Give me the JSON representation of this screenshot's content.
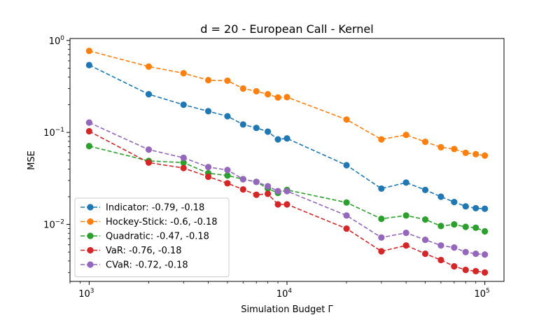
{
  "chart_data": {
    "type": "line",
    "title": "d = 20 - European Call - Kernel",
    "xlabel": "Simulation Budget Γ",
    "ylabel": "MSE",
    "xscale": "log",
    "yscale": "log",
    "xlim": [
      800,
      125000
    ],
    "ylim": [
      0.0024,
      1.05
    ],
    "x_ticks": [
      {
        "value": 1000,
        "base": "10",
        "exp": "3"
      },
      {
        "value": 10000,
        "base": "10",
        "exp": "4"
      },
      {
        "value": 100000,
        "base": "10",
        "exp": "5"
      }
    ],
    "y_ticks": [
      {
        "value": 0.01,
        "base": "10",
        "exp": "−2"
      },
      {
        "value": 0.1,
        "base": "10",
        "exp": "−1"
      },
      {
        "value": 1,
        "base": "10",
        "exp": "0"
      }
    ],
    "grid": false,
    "legend_position": "lower-left",
    "x": [
      1000,
      2000,
      3000,
      4000,
      5000,
      6000,
      7000,
      8000,
      9000,
      10000,
      20000,
      30000,
      40000,
      50000,
      60000,
      70000,
      80000,
      90000,
      100000
    ],
    "series": [
      {
        "name": "Indicator: -0.79, -0.18",
        "color": "#1f77b4",
        "values": [
          0.54,
          0.26,
          0.2,
          0.17,
          0.15,
          0.122,
          0.112,
          0.102,
          0.084,
          0.086,
          0.044,
          0.0245,
          0.0285,
          0.0237,
          0.02,
          0.0175,
          0.0157,
          0.015,
          0.0148
        ]
      },
      {
        "name": "Hockey-Stick: -0.6, -0.18",
        "color": "#ff7f0e",
        "values": [
          0.77,
          0.52,
          0.44,
          0.37,
          0.365,
          0.3,
          0.28,
          0.26,
          0.24,
          0.242,
          0.138,
          0.084,
          0.094,
          0.079,
          0.069,
          0.066,
          0.06,
          0.058,
          0.056
        ]
      },
      {
        "name": "Quadratic: -0.47, -0.18",
        "color": "#2ca02c",
        "values": [
          0.071,
          0.049,
          0.047,
          0.036,
          0.034,
          0.031,
          0.029,
          0.0245,
          0.022,
          0.0237,
          0.0173,
          0.0115,
          0.0125,
          0.0113,
          0.0096,
          0.01,
          0.0094,
          0.0092,
          0.0084
        ]
      },
      {
        "name": "VaR: -0.76, -0.18",
        "color": "#d62728",
        "values": [
          0.103,
          0.047,
          0.041,
          0.033,
          0.028,
          0.024,
          0.021,
          0.0215,
          0.0165,
          0.0165,
          0.009,
          0.0051,
          0.0059,
          0.0048,
          0.0041,
          0.0035,
          0.0032,
          0.0031,
          0.003
        ]
      },
      {
        "name": "CVaR: -0.72, -0.18",
        "color": "#9467bd",
        "values": [
          0.128,
          0.065,
          0.053,
          0.042,
          0.039,
          0.031,
          0.029,
          0.026,
          0.023,
          0.023,
          0.0125,
          0.0072,
          0.0081,
          0.0068,
          0.0059,
          0.0056,
          0.005,
          0.0048,
          0.0047
        ]
      }
    ]
  }
}
